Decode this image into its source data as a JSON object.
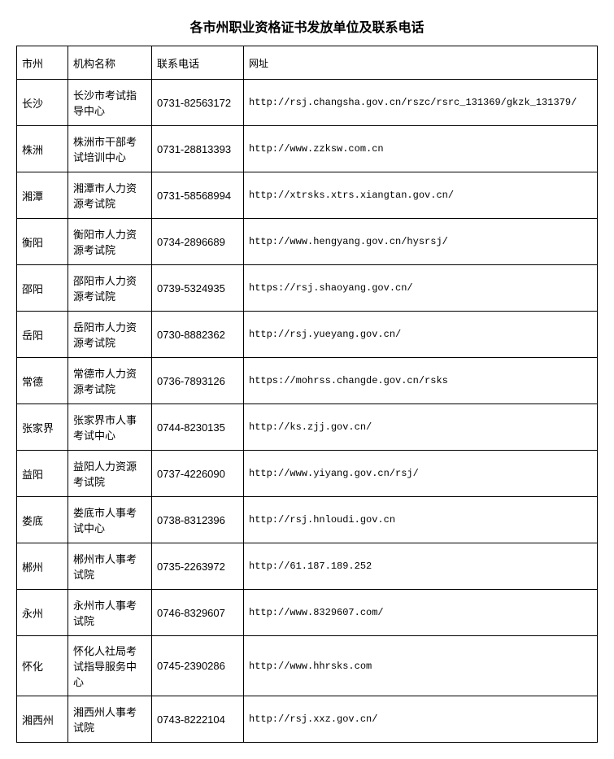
{
  "title": "各市州职业资格证书发放单位及联系电话",
  "table": {
    "columns": [
      "市州",
      "机构名称",
      "联系电话",
      "网址"
    ],
    "col_widths": [
      "50px",
      "90px",
      "100px",
      "auto"
    ],
    "border_color": "#000000",
    "background_color": "#ffffff",
    "text_color": "#000000",
    "title_fontsize": 16,
    "cell_fontsize": 13,
    "rows": [
      {
        "city": "长沙",
        "org": "长沙市考试指导中心",
        "phone": " 0731-82563172",
        "url": "http://rsj.changsha.gov.cn/rszc/rsrc_131369/gkzk_131379/"
      },
      {
        "city": "株洲",
        "org": "株洲市干部考试培训中心",
        "phone": "0731-28813393",
        "url": "http://www.zzksw.com.cn"
      },
      {
        "city": "湘潭",
        "org": "湘潭市人力资源考试院",
        "phone": "0731-58568994",
        "url": "http://xtrsks.xtrs.xiangtan.gov.cn/"
      },
      {
        "city": "衡阳",
        "org": "衡阳市人力资源考试院",
        "phone": "0734-2896689",
        "url": "http://www.hengyang.gov.cn/hysrsj/"
      },
      {
        "city": "邵阳",
        "org": "邵阳市人力资源考试院",
        "phone": "0739-5324935",
        "url": "https://rsj.shaoyang.gov.cn/"
      },
      {
        "city": "岳阳",
        "org": "岳阳市人力资源考试院",
        "phone": "0730-8882362",
        "url": "http://rsj.yueyang.gov.cn/"
      },
      {
        "city": "常德",
        "org": "常德市人力资源考试院",
        "phone": "0736-7893126",
        "url": "https://mohrss.changde.gov.cn/rsks"
      },
      {
        "city": "张家界",
        "org": "张家界市人事考试中心",
        "phone": "0744-8230135",
        "url": "http://ks.zjj.gov.cn/"
      },
      {
        "city": "益阳",
        "org": "益阳人力资源考试院",
        "phone": "0737-4226090",
        "url": "  http://www.yiyang.gov.cn/rsj/"
      },
      {
        "city": "娄底",
        "org": "娄底市人事考试中心",
        "phone": "0738-8312396",
        "url": "http://rsj.hnloudi.gov.cn"
      },
      {
        "city": "郴州",
        "org": "郴州市人事考试院",
        "phone": "0735-2263972",
        "url": "http://61.187.189.252"
      },
      {
        "city": "永州",
        "org": "永州市人事考试院",
        "phone": "0746-8329607",
        "url": "http://www.8329607.com/"
      },
      {
        "city": "怀化",
        "org": "怀化人社局考试指导服务中心",
        "phone": "0745-2390286",
        "url": "http://www.hhrsks.com"
      },
      {
        "city": "湘西州",
        "org": "湘西州人事考试院",
        "phone": "0743-8222104",
        "url": "http://rsj.xxz.gov.cn/"
      }
    ]
  }
}
